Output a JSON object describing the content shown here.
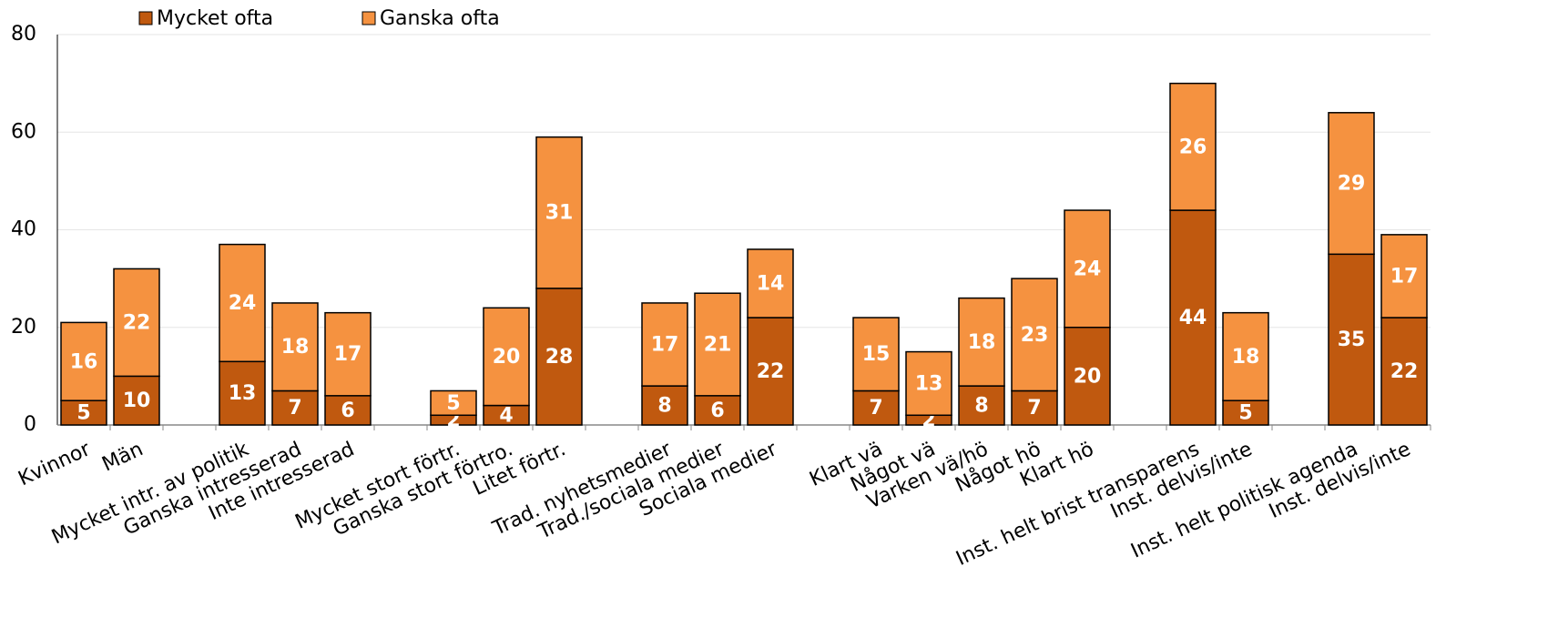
{
  "chart_data": {
    "type": "stacked_bar",
    "categories": [
      "Kvinnor",
      "Män",
      null,
      "Mycket intr. av politik",
      "Ganska intresserad",
      "Inte intresserad",
      null,
      "Mycket stort förtr.",
      "Ganska stort förtro.",
      "Litet förtr.",
      null,
      "Trad. nyhetsmedier",
      "Trad./sociala medier",
      "Sociala medier",
      null,
      "Klart vä",
      "Något vä",
      "Varken vä/hö",
      "Något hö",
      "Klart hö",
      null,
      "Inst. helt brist transparens",
      "Inst. delvis/inte",
      null,
      "Inst. helt politisk agenda",
      "Inst. delvis/inte"
    ],
    "series": [
      {
        "name": "Mycket ofta",
        "color": "#c0590f",
        "values": [
          5,
          10,
          null,
          13,
          7,
          6,
          null,
          2,
          4,
          28,
          null,
          8,
          6,
          22,
          null,
          7,
          2,
          8,
          7,
          20,
          null,
          44,
          5,
          null,
          35,
          22
        ]
      },
      {
        "name": "Ganska ofta",
        "color": "#f59240",
        "values": [
          16,
          22,
          null,
          24,
          18,
          17,
          null,
          5,
          20,
          31,
          null,
          17,
          21,
          14,
          null,
          15,
          13,
          18,
          23,
          24,
          null,
          26,
          18,
          null,
          29,
          17
        ]
      }
    ],
    "ylim": [
      0,
      80
    ],
    "yticks": [
      0,
      20,
      40,
      60,
      80
    ],
    "grid": true,
    "legend": "top"
  }
}
